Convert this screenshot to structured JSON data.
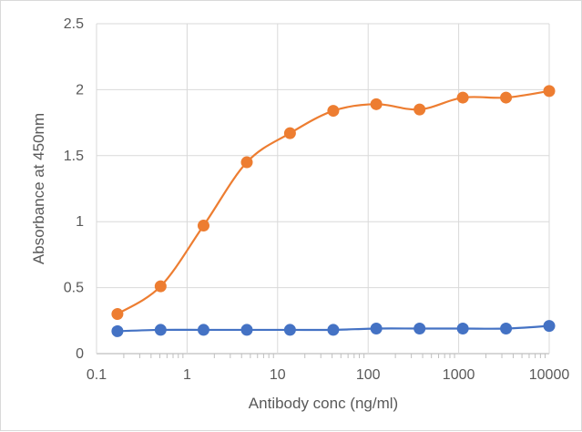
{
  "chart_data": {
    "type": "line",
    "title": "",
    "xlabel": "Antibody conc (ng/ml)",
    "ylabel": "Absorbance at 450nm",
    "x_scale": "log",
    "xlim": [
      0.1,
      10000
    ],
    "ylim": [
      0,
      2.5
    ],
    "x_ticks": [
      0.1,
      1,
      10,
      100,
      1000,
      10000
    ],
    "x_tick_labels": [
      "0.1",
      "1",
      "10",
      "100",
      "1000",
      "10000"
    ],
    "y_ticks": [
      0,
      0.5,
      1,
      1.5,
      2,
      2.5
    ],
    "y_tick_labels": [
      "0",
      "0.5",
      "1",
      "1.5",
      "2",
      "2.5"
    ],
    "grid": true,
    "legend": "none",
    "x": [
      0.17,
      0.51,
      1.52,
      4.57,
      13.7,
      41.2,
      123,
      370,
      1111,
      3333,
      10000
    ],
    "series": [
      {
        "color": "#ED7D31",
        "values": [
          0.3,
          0.51,
          0.97,
          1.45,
          1.67,
          1.84,
          1.89,
          1.85,
          1.94,
          1.94,
          1.99
        ]
      },
      {
        "color": "#4472C4",
        "values": [
          0.17,
          0.18,
          0.18,
          0.18,
          0.18,
          0.18,
          0.19,
          0.19,
          0.19,
          0.19,
          0.21
        ]
      }
    ]
  }
}
